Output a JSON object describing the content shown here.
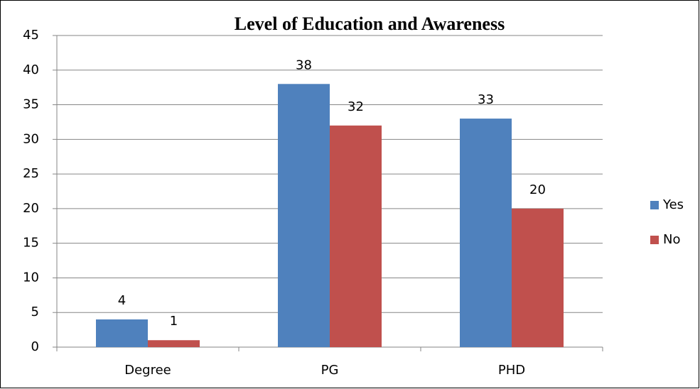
{
  "chart_data": {
    "type": "bar",
    "title": "Level of Education and Awareness",
    "categories": [
      "Degree",
      "PG",
      "PHD"
    ],
    "series": [
      {
        "name": "Yes",
        "color": "#4f81bd",
        "values": [
          4,
          38,
          33
        ]
      },
      {
        "name": "No",
        "color": "#c0504d",
        "values": [
          1,
          32,
          20
        ]
      }
    ],
    "ylim": [
      0,
      45
    ],
    "yticks": [
      0,
      5,
      10,
      15,
      20,
      25,
      30,
      35,
      40,
      45
    ],
    "grid": true,
    "legend": "right"
  }
}
